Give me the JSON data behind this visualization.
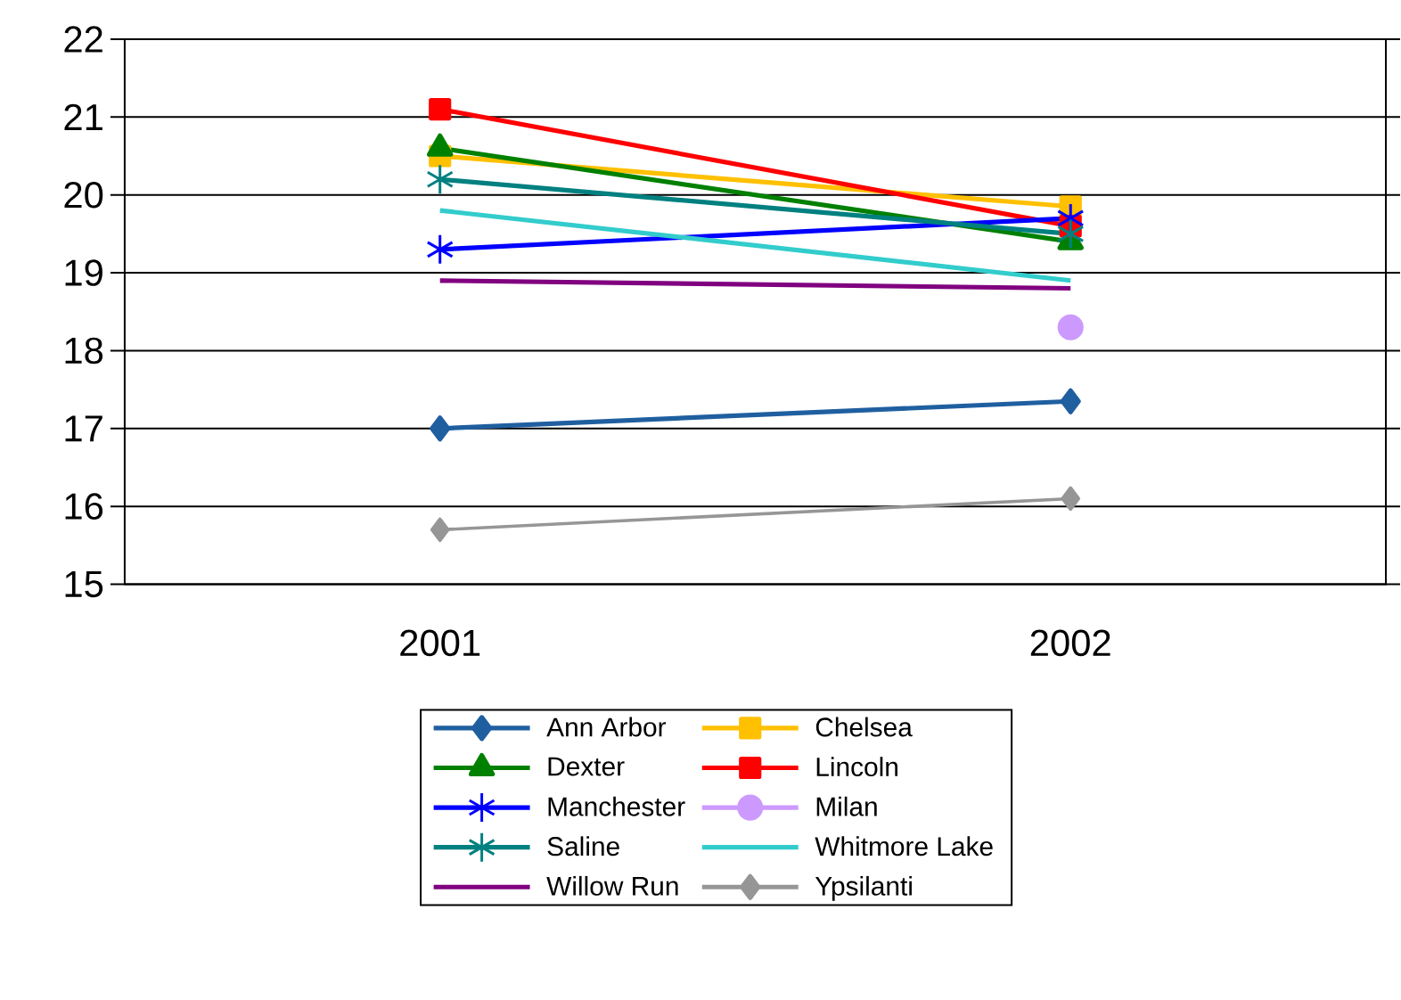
{
  "chart_data": {
    "type": "line",
    "categories": [
      "2001",
      "2002"
    ],
    "ylim": [
      15,
      22
    ],
    "yticks": [
      15,
      16,
      17,
      18,
      19,
      20,
      21,
      22
    ],
    "grid": "y",
    "legend": "bottom",
    "series": [
      {
        "name": "Ann Arbor",
        "color": "#1f5fa0",
        "marker": "diamond",
        "values": [
          17.0,
          17.35
        ]
      },
      {
        "name": "Chelsea",
        "color": "#ffc000",
        "marker": "square",
        "values": [
          20.5,
          19.85
        ]
      },
      {
        "name": "Dexter",
        "color": "#008000",
        "marker": "triangle",
        "values": [
          20.6,
          19.4
        ]
      },
      {
        "name": "Lincoln",
        "color": "#ff0000",
        "marker": "square",
        "values": [
          21.1,
          19.6
        ]
      },
      {
        "name": "Manchester",
        "color": "#0000ff",
        "marker": "cross",
        "values": [
          19.3,
          19.7
        ]
      },
      {
        "name": "Milan",
        "color": "#cc99ff",
        "marker": "circle",
        "values": [
          null,
          18.3
        ]
      },
      {
        "name": "Saline",
        "color": "#008080",
        "marker": "cross",
        "values": [
          20.2,
          19.5
        ]
      },
      {
        "name": "Whitmore Lake",
        "color": "#33cccc",
        "marker": "none",
        "values": [
          19.8,
          18.9
        ]
      },
      {
        "name": "Willow Run",
        "color": "#800080",
        "marker": "none",
        "values": [
          18.9,
          18.8
        ]
      },
      {
        "name": "Ypsilanti",
        "color": "#969696",
        "marker": "diamond",
        "values": [
          15.7,
          16.1
        ]
      }
    ]
  }
}
